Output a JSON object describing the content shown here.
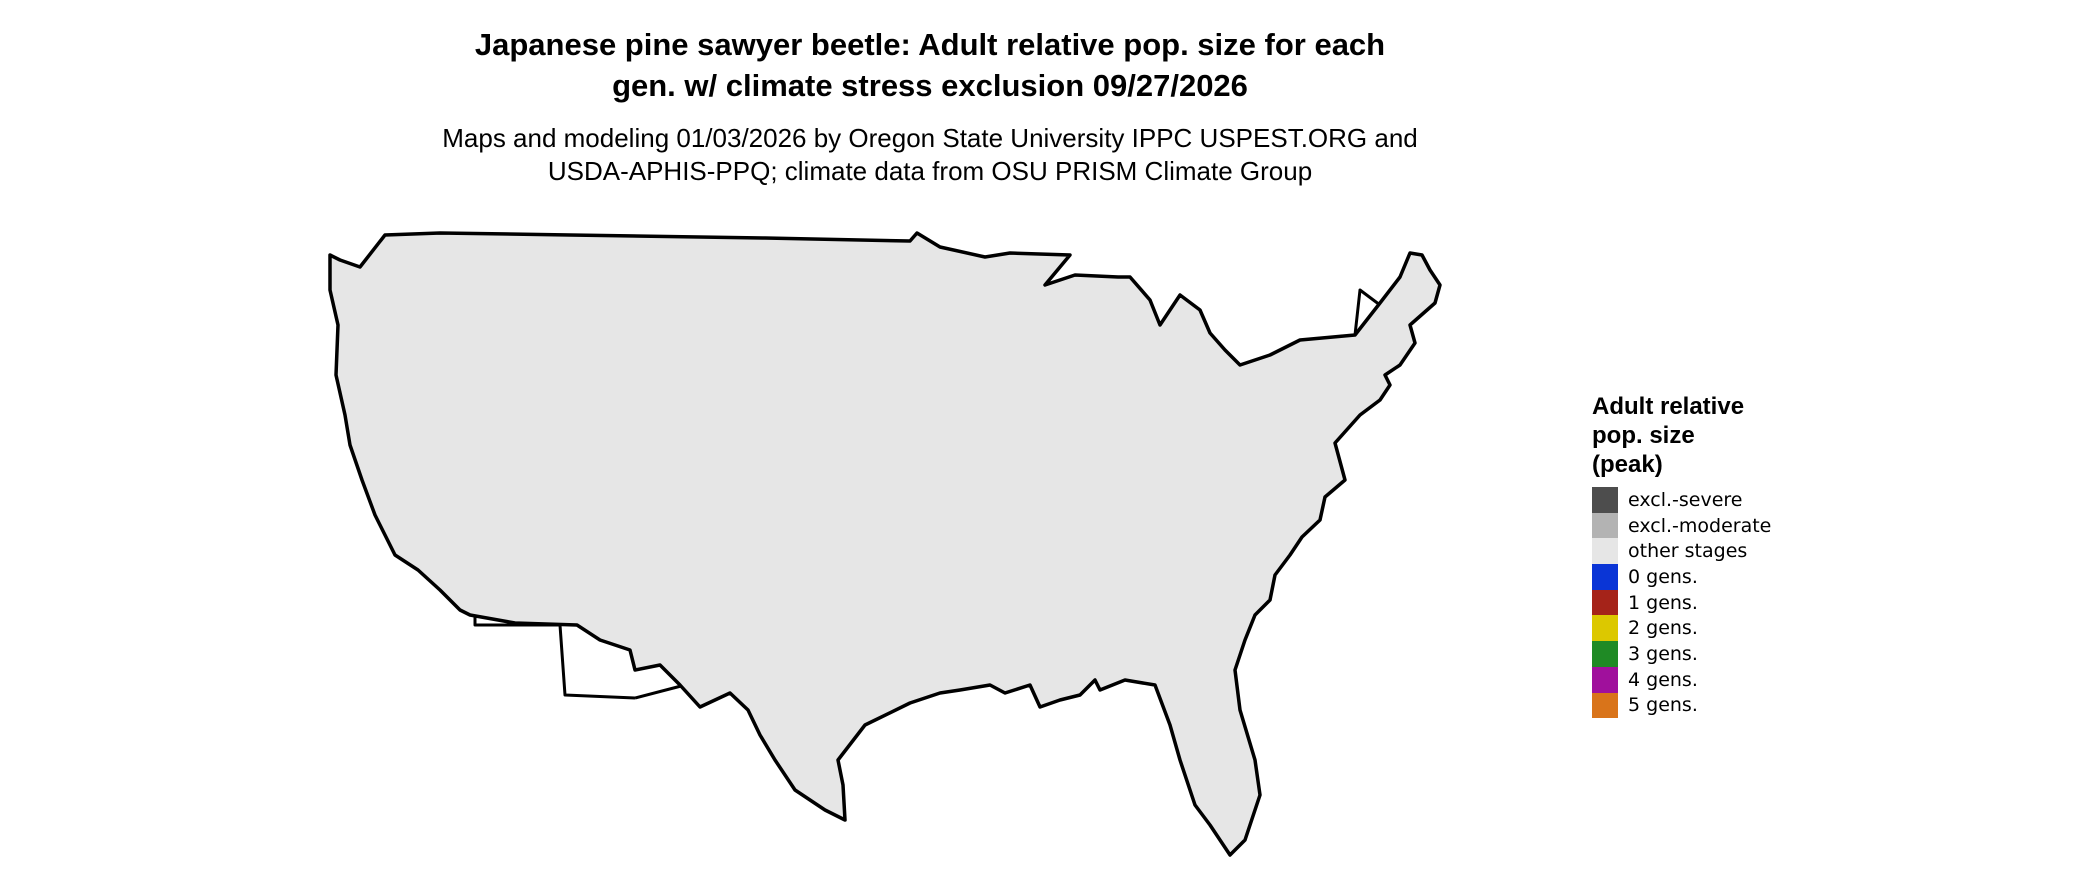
{
  "title_line1": "Japanese pine sawyer beetle: Adult relative pop. size for each",
  "title_line2": "gen. w/ climate stress exclusion 09/27/2026",
  "subtitle_line1": "Maps and modeling 01/03/2026 by Oregon State University IPPC USPEST.ORG and",
  "subtitle_line2": "USDA-APHIS-PPQ; climate data from OSU PRISM Climate Group",
  "legend": {
    "title": "Adult relative\npop. size\n(peak)",
    "items": [
      {
        "label": "excl.-severe",
        "color": "#4d4d4d"
      },
      {
        "label": "excl.-moderate",
        "color": "#b3b3b3"
      },
      {
        "label": "other stages",
        "color": "#e6e6e6"
      },
      {
        "label": "0 gens.",
        "color": "#0a35d6"
      },
      {
        "label": "1 gens.",
        "color": "#a52319"
      },
      {
        "label": "2 gens.",
        "color": "#dcc800"
      },
      {
        "label": "3 gens.",
        "color": "#1f8a25"
      },
      {
        "label": "4 gens.",
        "color": "#a0109c"
      },
      {
        "label": "5 gens.",
        "color": "#d9741a"
      }
    ]
  },
  "map_colors": {
    "base": "#e6e6e6",
    "severe": "#4d4d4d",
    "moderate": "#b3b3b3",
    "zero": "#0a35d6",
    "one_dark": "#9c2217",
    "one_orange": "#e8400c",
    "two": "#f0e800",
    "two_dark": "#d6c300",
    "three": "#36c246",
    "border": "#000000"
  }
}
